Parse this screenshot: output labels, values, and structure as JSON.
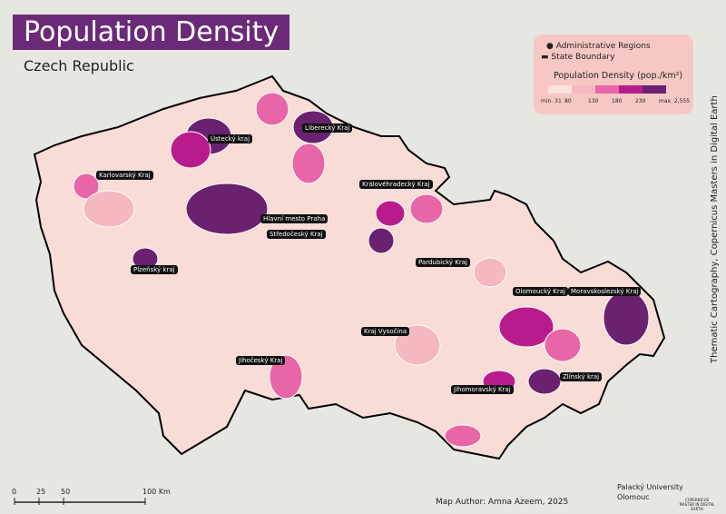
{
  "header": {
    "title": "Population Density",
    "subtitle": "Czech Republic"
  },
  "legend": {
    "items": [
      "Administrative Regions",
      "State Boundary"
    ],
    "title": "Population Density (pop./km²)",
    "classes": [
      {
        "color": "#fbe4de"
      },
      {
        "color": "#f5b8c0"
      },
      {
        "color": "#e866a8"
      },
      {
        "color": "#b81c8c"
      },
      {
        "color": "#6a216f"
      }
    ],
    "breaks": [
      "min. 31",
      "80",
      "130",
      "180",
      "230",
      "max. 2,555"
    ]
  },
  "regions": [
    {
      "label": "Ústecký kraj"
    },
    {
      "label": "Liberecký Kraj"
    },
    {
      "label": "Karlovarský Kraj"
    },
    {
      "label": "Královéhradecký Kraj"
    },
    {
      "label": "Hlavní mesto Praha"
    },
    {
      "label": "Středočeský Kraj"
    },
    {
      "label": "Plzeňský kraj"
    },
    {
      "label": "Pardubický Kraj"
    },
    {
      "label": "Olomoucký Kraj"
    },
    {
      "label": "Moravskoslezský Kraj"
    },
    {
      "label": "Kraj Vysočina"
    },
    {
      "label": "Jihočeský Kraj"
    },
    {
      "label": "Jihomoravský Kraj"
    },
    {
      "label": "Zlínský kraj"
    }
  ],
  "scale_bar": {
    "ticks": [
      "0",
      "25",
      "50",
      "100 Km"
    ]
  },
  "credits": {
    "author": "Map Author: Amna Azeem, 2025",
    "university": [
      "Palacký University",
      "Olomouc"
    ],
    "program": "COPERNICUS MASTER IN DIGITAL EARTH",
    "side_note": "Thematic Cartography, Copernicus Masters in Digital Earth"
  }
}
